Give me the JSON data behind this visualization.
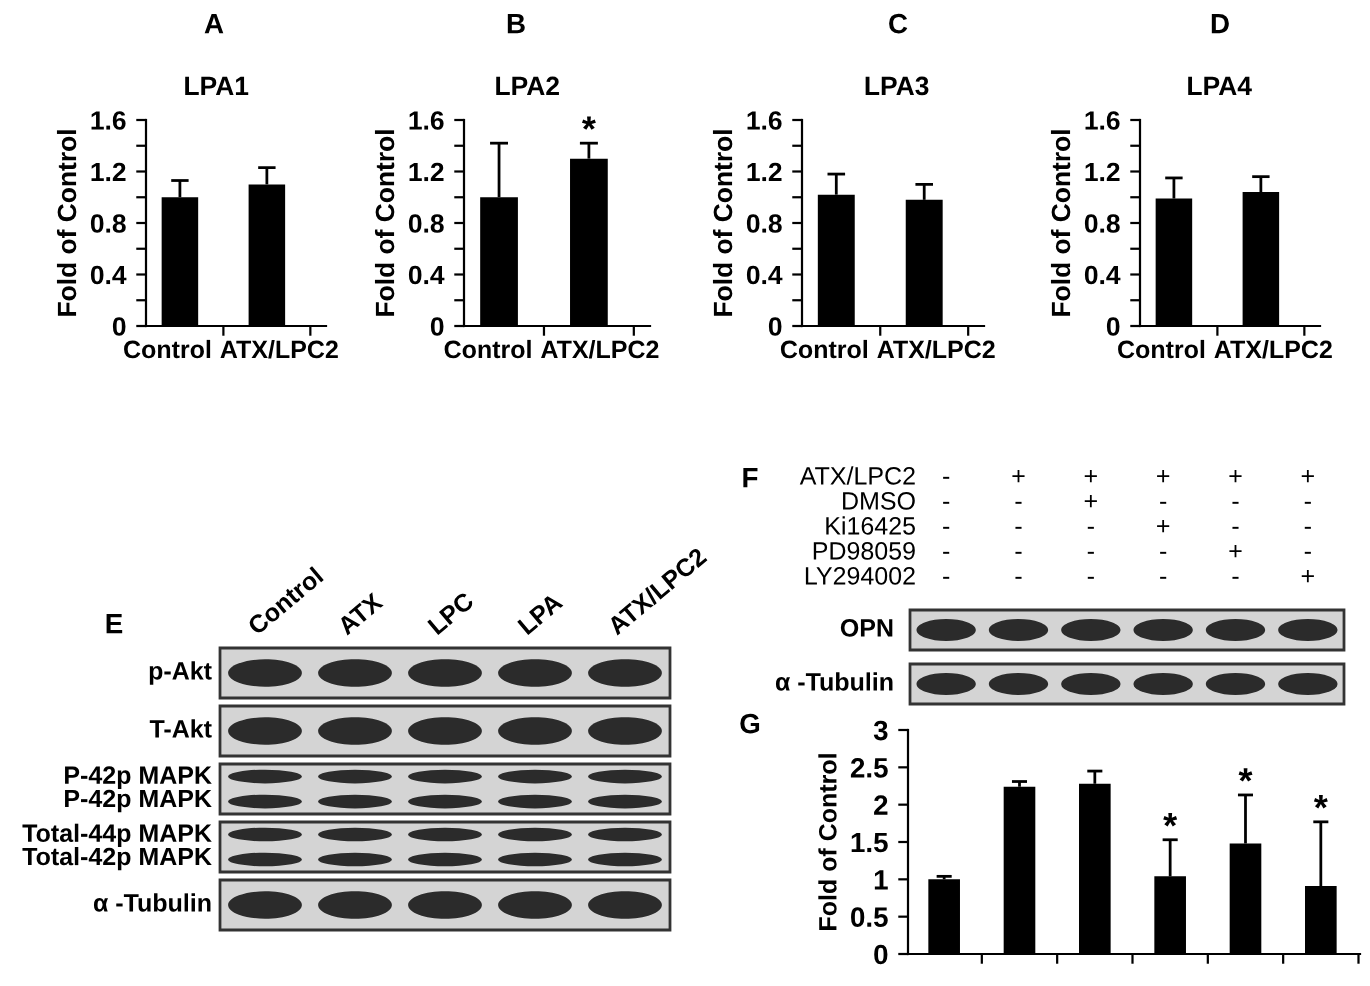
{
  "chart_data": [
    {
      "type": "bar",
      "title": "LPA1",
      "ylabel": "Fold of Control",
      "annotations": [
        "A"
      ],
      "categories": [
        "Control",
        "ATX/LPC2"
      ],
      "values": [
        1.0,
        1.1
      ],
      "color": "#000000",
      "errors": [
        [
          1.0,
          1.13
        ],
        [
          1.1,
          1.23
        ]
      ],
      "ylim": [
        0,
        1.6
      ],
      "yticks": [
        0,
        {
          "value": 0.2,
          "label": null
        },
        0.4,
        {
          "value": 0.6,
          "label": null
        },
        0.8,
        {
          "value": 1.0,
          "label": null
        },
        1.2,
        {
          "value": 1.4,
          "label": null
        },
        1.6
      ]
    },
    {
      "type": "bar",
      "title": "LPA2",
      "ylabel": "Fold of Control",
      "annotations": [
        "B"
      ],
      "categories": [
        "Control",
        "ATX/LPC2"
      ],
      "values": [
        1.0,
        1.3
      ],
      "color": "#000000",
      "errors": [
        [
          1.0,
          1.42
        ],
        [
          1.3,
          1.42
        ]
      ],
      "value_labels": [
        null,
        "*"
      ],
      "ylim": [
        0,
        1.6
      ],
      "yticks": [
        0,
        {
          "value": 0.2,
          "label": null
        },
        0.4,
        {
          "value": 0.6,
          "label": null
        },
        0.8,
        {
          "value": 1.0,
          "label": null
        },
        1.2,
        {
          "value": 1.4,
          "label": null
        },
        1.6
      ]
    },
    {
      "type": "bar",
      "title": "LPA3",
      "ylabel": "Fold of Control",
      "annotations": [
        "C"
      ],
      "categories": [
        "Control",
        "ATX/LPC2"
      ],
      "values": [
        1.02,
        0.98
      ],
      "color": "#000000",
      "errors": [
        [
          1.02,
          1.18
        ],
        [
          0.98,
          1.1
        ]
      ],
      "ylim": [
        0,
        1.6
      ],
      "yticks": [
        0,
        {
          "value": 0.2,
          "label": null
        },
        0.4,
        {
          "value": 0.6,
          "label": null
        },
        0.8,
        {
          "value": 1.0,
          "label": null
        },
        1.2,
        {
          "value": 1.4,
          "label": null
        },
        1.6
      ]
    },
    {
      "type": "bar",
      "title": "LPA4",
      "ylabel": "Fold of Control",
      "annotations": [
        "D"
      ],
      "categories": [
        "Control",
        "ATX/LPC2"
      ],
      "values": [
        0.99,
        1.04
      ],
      "color": "#000000",
      "errors": [
        [
          0.99,
          1.15
        ],
        [
          1.04,
          1.16
        ]
      ],
      "ylim": [
        0,
        1.6
      ],
      "yticks": [
        0,
        {
          "value": 0.2,
          "label": null
        },
        0.4,
        {
          "value": 0.6,
          "label": null
        },
        0.8,
        {
          "value": 1.0,
          "label": null
        },
        1.2,
        {
          "value": 1.4,
          "label": null
        },
        1.6
      ]
    },
    {
      "type": "other",
      "annotations": [
        "E"
      ],
      "categories": [
        "Control",
        "ATX",
        "LPC",
        "LPA",
        "ATX/LPC2"
      ],
      "y2_categories": [
        "p-Akt",
        "T-Akt",
        "P-42p MAPK\nP-42p MAPK",
        "Total-44p MAPK\nTotal-42p MAPK",
        "α -Tubulin"
      ]
    },
    {
      "type": "other",
      "annotations": [
        "F"
      ],
      "y_categories": [
        "ATX/LPC2",
        "DMSO",
        "Ki16425",
        "PD98059",
        "LY294002"
      ],
      "cell_labels": [
        [
          "-",
          "+",
          "+",
          "+",
          "+",
          "+"
        ],
        [
          "-",
          "-",
          "+",
          "-",
          "-",
          "-"
        ],
        [
          "-",
          "-",
          "-",
          "+",
          "-",
          "-"
        ],
        [
          "-",
          "-",
          "-",
          "-",
          "+",
          "-"
        ],
        [
          "-",
          "-",
          "-",
          "-",
          "-",
          "+"
        ]
      ],
      "y2_categories": [
        "OPN",
        "α -Tubulin"
      ]
    },
    {
      "type": "bar",
      "ylabel": "Fold of Control",
      "annotations": [
        "G"
      ],
      "categories": [
        null,
        null,
        null,
        null,
        null,
        null
      ],
      "values": [
        1.0,
        2.24,
        2.28,
        1.04,
        1.48,
        0.91
      ],
      "color": "#000000",
      "errors": [
        [
          1.0,
          1.04
        ],
        [
          2.24,
          2.31
        ],
        [
          2.28,
          2.45
        ],
        [
          1.04,
          1.53
        ],
        [
          1.48,
          2.13
        ],
        [
          0.91,
          1.77
        ]
      ],
      "value_labels": [
        null,
        null,
        null,
        "*",
        "*",
        "*"
      ],
      "ylim": [
        0,
        3
      ],
      "yticks": [
        0,
        0.5,
        1,
        1.5,
        2,
        2.5,
        3
      ]
    }
  ]
}
